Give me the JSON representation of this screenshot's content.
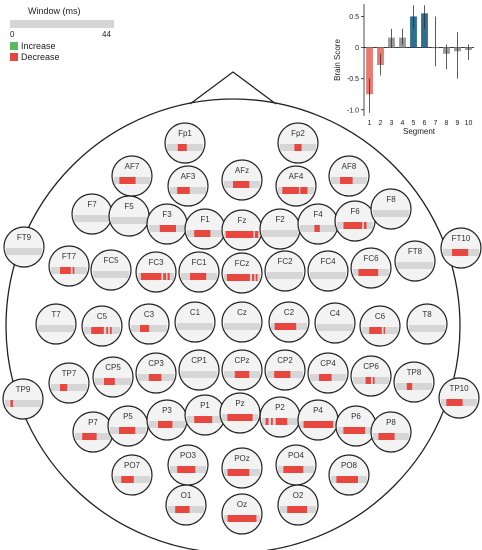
{
  "legend": {
    "title": "Window (ms)",
    "min": "0",
    "max": "44",
    "increase_label": "Increase",
    "decrease_label": "Decrease",
    "increase_color": "#5cb85c",
    "decrease_color": "#e8473f"
  },
  "colors": {
    "decrease": "#e8473f",
    "track": "#d6d6d6",
    "electrode_fill": "#f3f3f3",
    "positive_bar": "#2e6f8e",
    "negative_bar": "#e87a72",
    "neutral_bar": "#9a9a9a"
  },
  "chart_data": {
    "type": "bar",
    "xlabel": "Segment",
    "ylabel": "Brain Score",
    "ylim": [
      -1.1,
      0.7
    ],
    "yticks": [
      0.5,
      0.0,
      -0.5,
      -1.0
    ],
    "ytick_labels": [
      "0.5",
      "0",
      "-0.5",
      "-1.0"
    ],
    "categories": [
      "1",
      "2",
      "3",
      "4",
      "5",
      "6",
      "7",
      "8",
      "9",
      "10"
    ],
    "values": [
      -0.75,
      -0.28,
      0.16,
      0.16,
      0.5,
      0.55,
      0.0,
      -0.1,
      -0.06,
      -0.04
    ],
    "error_low": [
      -1.05,
      -0.45,
      0.0,
      0.05,
      0.3,
      0.3,
      -0.3,
      -0.35,
      -0.5,
      -0.2
    ],
    "error_high": [
      -0.5,
      -0.1,
      0.3,
      0.3,
      0.68,
      0.68,
      0.5,
      0.05,
      0.25,
      0.05
    ],
    "bar_colors": [
      "#e87a72",
      "#e87a72",
      "#9a9a9a",
      "#9a9a9a",
      "#2e6f8e",
      "#2e6f8e",
      "#9a9a9a",
      "#9a9a9a",
      "#9a9a9a",
      "#9a9a9a"
    ]
  },
  "electrodes": [
    {
      "name": "Fp1",
      "segments": [
        [
          0.3,
          0.55
        ]
      ]
    },
    {
      "name": "Fp2",
      "segments": [
        [
          0.4,
          0.6
        ]
      ]
    },
    {
      "name": "AF7",
      "segments": [
        [
          0.15,
          0.6
        ]
      ]
    },
    {
      "name": "AF3",
      "segments": [
        [
          0.2,
          0.55
        ]
      ]
    },
    {
      "name": "AFz",
      "segments": [
        [
          0.25,
          0.7
        ]
      ]
    },
    {
      "name": "AF4",
      "segments": [
        [
          0.12,
          0.58
        ],
        [
          0.62,
          0.82
        ]
      ]
    },
    {
      "name": "AF8",
      "segments": [
        [
          0.25,
          0.6
        ]
      ]
    },
    {
      "name": "F7",
      "segments": []
    },
    {
      "name": "F5",
      "segments": []
    },
    {
      "name": "F3",
      "segments": [
        [
          0.3,
          0.75
        ]
      ]
    },
    {
      "name": "F1",
      "segments": [
        [
          0.2,
          0.65
        ]
      ]
    },
    {
      "name": "Fz",
      "segments": [
        [
          0.05,
          0.82
        ],
        [
          0.86,
          0.95
        ]
      ]
    },
    {
      "name": "F2",
      "segments": []
    },
    {
      "name": "F4",
      "segments": [
        [
          0.4,
          0.55
        ]
      ]
    },
    {
      "name": "F6",
      "segments": [
        [
          0.18,
          0.7
        ],
        [
          0.75,
          0.82
        ]
      ]
    },
    {
      "name": "F8",
      "segments": []
    },
    {
      "name": "FT9",
      "segments": []
    },
    {
      "name": "FT7",
      "segments": [
        [
          0.25,
          0.55
        ],
        [
          0.6,
          0.65
        ]
      ]
    },
    {
      "name": "FC5",
      "segments": []
    },
    {
      "name": "FC3",
      "segments": [
        [
          0.08,
          0.65
        ],
        [
          0.7,
          0.78
        ],
        [
          0.82,
          0.88
        ]
      ]
    },
    {
      "name": "FC1",
      "segments": [
        [
          0.25,
          0.7
        ]
      ]
    },
    {
      "name": "FCz",
      "segments": [
        [
          0.08,
          0.72
        ],
        [
          0.78,
          0.84
        ],
        [
          0.88,
          0.93
        ]
      ]
    },
    {
      "name": "FC2",
      "segments": []
    },
    {
      "name": "FC4",
      "segments": []
    },
    {
      "name": "FC6",
      "segments": [
        [
          0.15,
          0.7
        ]
      ]
    },
    {
      "name": "FT8",
      "segments": []
    },
    {
      "name": "FT10",
      "segments": [
        [
          0.25,
          0.7
        ]
      ]
    },
    {
      "name": "T7",
      "segments": []
    },
    {
      "name": "C5",
      "segments": [
        [
          0.2,
          0.55
        ],
        [
          0.62,
          0.67
        ],
        [
          0.72,
          0.77
        ]
      ]
    },
    {
      "name": "C3",
      "segments": [
        [
          0.25,
          0.5
        ]
      ]
    },
    {
      "name": "C1",
      "segments": []
    },
    {
      "name": "Cz",
      "segments": []
    },
    {
      "name": "C2",
      "segments": [
        [
          0.1,
          0.7
        ]
      ]
    },
    {
      "name": "C4",
      "segments": []
    },
    {
      "name": "C6",
      "segments": [
        [
          0.2,
          0.55
        ],
        [
          0.6,
          0.64
        ]
      ]
    },
    {
      "name": "T8",
      "segments": []
    },
    {
      "name": "TP9",
      "segments": [
        [
          0.15,
          0.22
        ]
      ]
    },
    {
      "name": "TP7",
      "segments": [
        [
          0.25,
          0.45
        ]
      ]
    },
    {
      "name": "CP5",
      "segments": [
        [
          0.25,
          0.55
        ]
      ]
    },
    {
      "name": "CP3",
      "segments": [
        [
          0.3,
          0.65
        ]
      ]
    },
    {
      "name": "CP1",
      "segments": []
    },
    {
      "name": "CPz",
      "segments": [
        [
          0.3,
          0.7
        ]
      ]
    },
    {
      "name": "CP2",
      "segments": [
        [
          0.2,
          0.65
        ]
      ]
    },
    {
      "name": "CP4",
      "segments": [
        [
          0.25,
          0.6
        ]
      ]
    },
    {
      "name": "CP6",
      "segments": [
        [
          0.35,
          0.5
        ],
        [
          0.55,
          0.6
        ]
      ]
    },
    {
      "name": "TP8",
      "segments": [
        [
          0.3,
          0.45
        ]
      ]
    },
    {
      "name": "TP10",
      "segments": [
        [
          0.15,
          0.6
        ]
      ]
    },
    {
      "name": "P7",
      "segments": [
        [
          0.2,
          0.6
        ]
      ]
    },
    {
      "name": "P5",
      "segments": [
        [
          0.25,
          0.7
        ]
      ]
    },
    {
      "name": "P3",
      "segments": [
        [
          0.25,
          0.65
        ]
      ]
    },
    {
      "name": "P1",
      "segments": [
        [
          0.2,
          0.7
        ]
      ]
    },
    {
      "name": "Pz",
      "segments": [
        [
          0.15,
          0.85
        ]
      ]
    },
    {
      "name": "P2",
      "segments": [
        [
          0.1,
          0.18
        ],
        [
          0.25,
          0.3
        ],
        [
          0.38,
          0.7
        ]
      ]
    },
    {
      "name": "P4",
      "segments": [
        [
          0.1,
          0.92
        ]
      ]
    },
    {
      "name": "P6",
      "segments": [
        [
          0.15,
          0.75
        ]
      ]
    },
    {
      "name": "P8",
      "segments": [
        [
          0.15,
          0.6
        ]
      ]
    },
    {
      "name": "PO7",
      "segments": [
        [
          0.2,
          0.55
        ]
      ]
    },
    {
      "name": "PO3",
      "segments": [
        [
          0.2,
          0.7
        ]
      ]
    },
    {
      "name": "POz",
      "segments": [
        [
          0.1,
          0.7
        ]
      ]
    },
    {
      "name": "PO4",
      "segments": [
        [
          0.15,
          0.7
        ]
      ]
    },
    {
      "name": "PO8",
      "segments": [
        [
          0.15,
          0.75
        ]
      ]
    },
    {
      "name": "O1",
      "segments": [
        [
          0.2,
          0.6
        ]
      ]
    },
    {
      "name": "Oz",
      "segments": [
        [
          0.1,
          0.9
        ]
      ]
    },
    {
      "name": "O2",
      "segments": [
        [
          0.2,
          0.75
        ]
      ]
    }
  ]
}
